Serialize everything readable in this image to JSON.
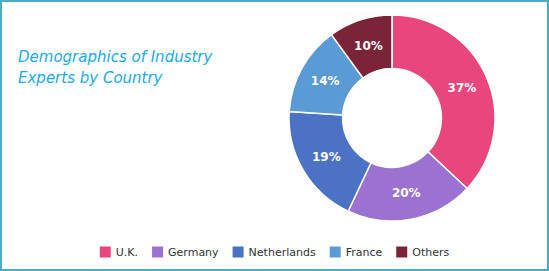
{
  "chart_data": {
    "type": "pie",
    "title": "Demographics of Industry\nExperts by Country",
    "categories": [
      "U.K.",
      "Germany",
      "Netherlands",
      "France",
      "Others"
    ],
    "values": [
      37,
      20,
      19,
      14,
      10
    ],
    "value_labels": [
      "37%",
      "20%",
      "19%",
      "14%",
      "10%"
    ],
    "colors": [
      "#E8467C",
      "#9B72CF",
      "#4B72C4",
      "#5B9BD5",
      "#7B2438"
    ],
    "data_labels": true,
    "legend": "bottom"
  }
}
